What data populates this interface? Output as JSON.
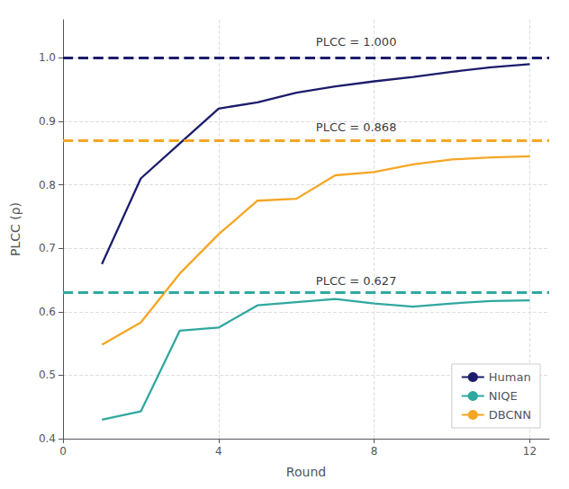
{
  "chart_data": {
    "type": "line",
    "xlabel": "Round",
    "ylabel": "PLCC (ρ)",
    "series": [
      {
        "name": "Human",
        "color": "#1c1c6b",
        "x": [
          1,
          2,
          3,
          4,
          5,
          6,
          7,
          8,
          9,
          10,
          11,
          12
        ],
        "values": [
          0.675,
          0.81,
          0.865,
          0.92,
          0.93,
          0.945,
          0.955,
          0.963,
          0.97,
          0.978,
          0.985,
          0.99
        ]
      },
      {
        "name": "NIQE",
        "color": "#2fa89f",
        "x": [
          1,
          2,
          3,
          4,
          5,
          6,
          7,
          8,
          9,
          10,
          11,
          12
        ],
        "values": [
          0.43,
          0.443,
          0.57,
          0.575,
          0.61,
          0.615,
          0.62,
          0.613,
          0.608,
          0.613,
          0.617,
          0.618
        ]
      },
      {
        "name": "DBCNN",
        "color": "#f5a623",
        "x": [
          1,
          2,
          3,
          4,
          5,
          6,
          7,
          8,
          9,
          10,
          11,
          12
        ],
        "values": [
          0.548,
          0.583,
          0.66,
          0.722,
          0.775,
          0.778,
          0.815,
          0.82,
          0.832,
          0.84,
          0.843,
          0.845
        ]
      }
    ],
    "reference_lines": [
      {
        "value": 1.0,
        "color": "#1c1c6b",
        "line_style": "dashed"
      },
      {
        "value": 0.868,
        "color": "#f5a623",
        "line_style": "dashed"
      },
      {
        "value": 0.627,
        "color": "#2fa89f",
        "line_style": "dashed"
      }
    ],
    "annotations": [
      {
        "text": "PLCC = 1.000",
        "x": 6.5,
        "y": 1.014
      },
      {
        "text": "PLCC = 0.868",
        "x": 6.5,
        "y": 0.88
      },
      {
        "text": "PLCC = 0.627",
        "x": 6.5,
        "y": 0.638
      }
    ],
    "xlim": [
      0,
      12.5
    ],
    "xticks": [
      0,
      4,
      8,
      12
    ],
    "ylim": [
      0.4,
      1.06
    ],
    "yticks": [
      0.4,
      0.5,
      0.6,
      0.7,
      0.8,
      0.9,
      {
        "value": 1.0,
        "label": "1.0"
      }
    ],
    "grid": true,
    "legend": "lower right"
  }
}
